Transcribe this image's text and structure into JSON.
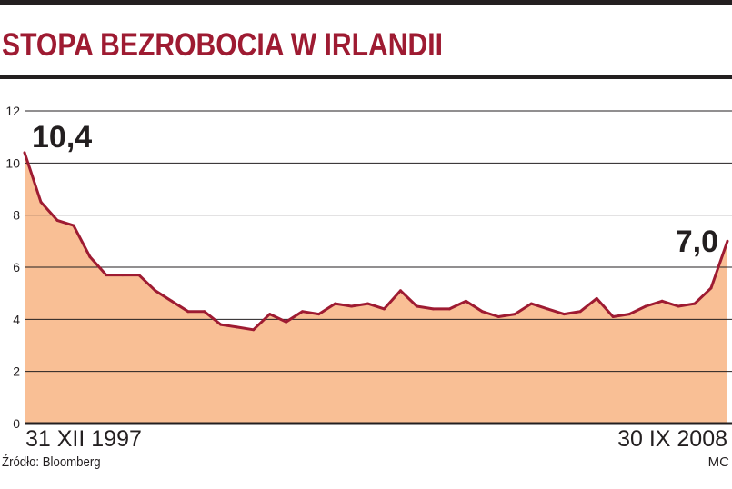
{
  "title": "STOPA BEZROBOCIA W IRLANDII",
  "source": "Źródło: Bloomberg",
  "credit": "MC",
  "colors": {
    "title": "#9e1b32",
    "line": "#9e1b32",
    "fill": "#f9bf95",
    "bar": "#231f20",
    "grid": "#231f20"
  },
  "chart_data": {
    "type": "area",
    "x_start_label": "31 XII 1997",
    "x_end_label": "30 IX 2008",
    "ylim": [
      0,
      12
    ],
    "yticks": [
      0,
      2,
      4,
      6,
      8,
      10,
      12
    ],
    "grid": true,
    "annotations": [
      {
        "label": "10,4",
        "value": 10.4,
        "point": "first"
      },
      {
        "label": "7,0",
        "value": 7.0,
        "point": "last"
      }
    ],
    "values": [
      10.4,
      8.5,
      7.8,
      7.6,
      6.4,
      5.7,
      5.7,
      5.7,
      5.1,
      4.7,
      4.3,
      4.3,
      3.8,
      3.7,
      3.6,
      4.2,
      3.9,
      4.3,
      4.2,
      4.6,
      4.5,
      4.6,
      4.4,
      5.1,
      4.5,
      4.4,
      4.4,
      4.7,
      4.3,
      4.1,
      4.2,
      4.6,
      4.4,
      4.2,
      4.3,
      4.8,
      4.1,
      4.2,
      4.5,
      4.7,
      4.5,
      4.6,
      5.2,
      7.0
    ]
  }
}
